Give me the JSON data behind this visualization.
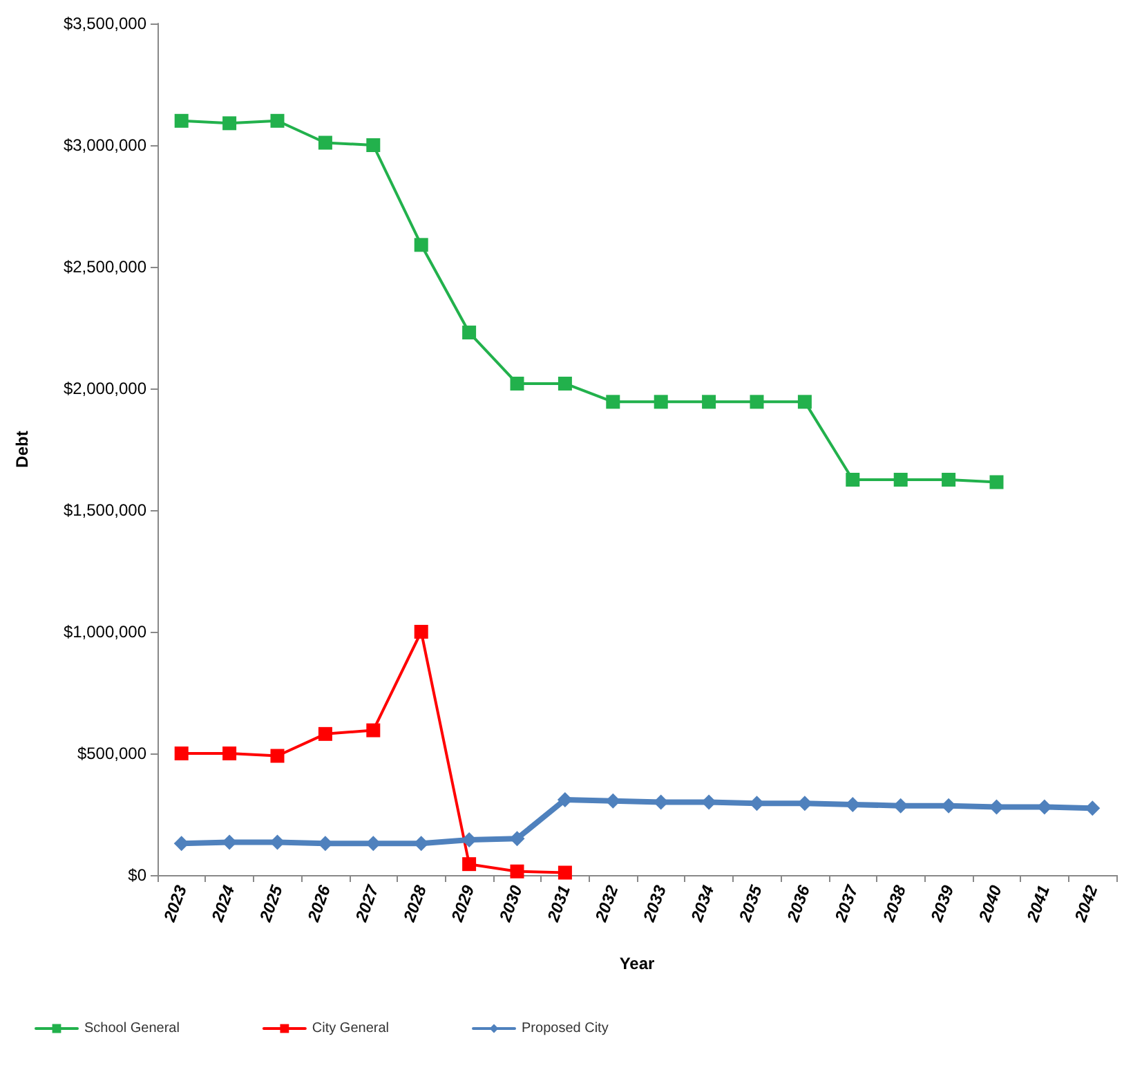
{
  "chart_data": {
    "type": "line",
    "xlabel": "Year",
    "ylabel": "Debt",
    "categories": [
      "2023",
      "2024",
      "2025",
      "2026",
      "2027",
      "2028",
      "2029",
      "2030",
      "2031",
      "2032",
      "2033",
      "2034",
      "2035",
      "2036",
      "2037",
      "2038",
      "2039",
      "2040",
      "2041",
      "2042"
    ],
    "series": [
      {
        "name": "School General",
        "color": "#22b14c",
        "marker": "square",
        "values": [
          3100000,
          3090000,
          3100000,
          3010000,
          3000000,
          2590000,
          2230000,
          2020000,
          2020000,
          1945000,
          1945000,
          1945000,
          1945000,
          1945000,
          1625000,
          1625000,
          1625000,
          1615000,
          null,
          null
        ]
      },
      {
        "name": "City General",
        "color": "#ff0000",
        "marker": "square",
        "values": [
          500000,
          500000,
          490000,
          580000,
          595000,
          1000000,
          45000,
          15000,
          10000,
          null,
          null,
          null,
          null,
          null,
          null,
          null,
          null,
          null,
          null,
          null
        ]
      },
      {
        "name": "Proposed City",
        "color": "#4f81bd",
        "marker": "diamond",
        "values": [
          130000,
          135000,
          135000,
          130000,
          130000,
          130000,
          145000,
          150000,
          310000,
          305000,
          300000,
          300000,
          295000,
          295000,
          290000,
          285000,
          285000,
          280000,
          280000,
          275000
        ]
      }
    ],
    "ylim": [
      0,
      3500000
    ],
    "yticks": [
      {
        "value": 0,
        "label": "$0"
      },
      {
        "value": 500000,
        "label": "$500,000"
      },
      {
        "value": 1000000,
        "label": "$1,000,000"
      },
      {
        "value": 1500000,
        "label": "$1,500,000"
      },
      {
        "value": 2000000,
        "label": "$2,000,000"
      },
      {
        "value": 2500000,
        "label": "$2,500,000"
      },
      {
        "value": 3000000,
        "label": "$3,000,000"
      },
      {
        "value": 3500000,
        "label": "$3,500,000"
      }
    ],
    "grid": false,
    "legend": "bottom left"
  }
}
